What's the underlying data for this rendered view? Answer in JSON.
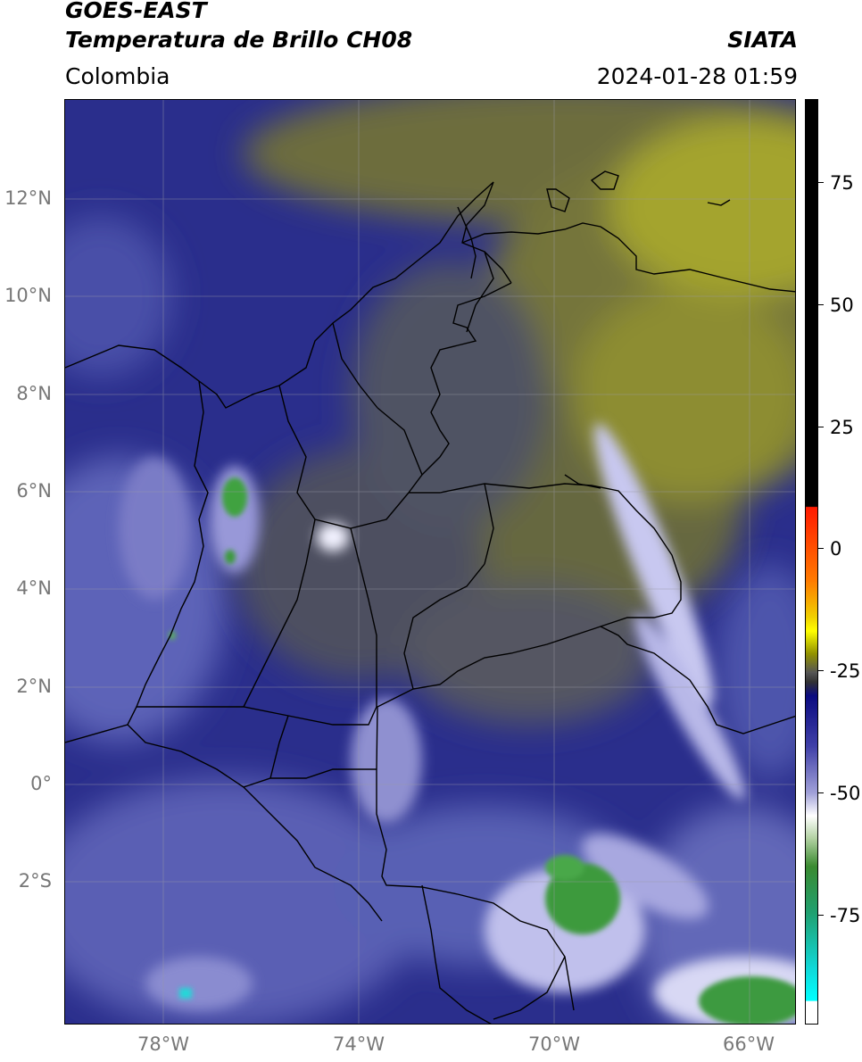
{
  "header": {
    "satellite": "GOES-EAST",
    "product": "Temperatura de Brillo CH08",
    "organization": "SIATA",
    "region": "Colombia",
    "datetime": "2024-01-28 01:59"
  },
  "map": {
    "lat_range": [
      -6.0,
      14.0
    ],
    "lon_range": [
      -80.0,
      -65.0
    ],
    "lat_ticks": [
      {
        "value": 12,
        "label": "12°N"
      },
      {
        "value": 10,
        "label": "10°N"
      },
      {
        "value": 8,
        "label": "8°N"
      },
      {
        "value": 6,
        "label": "6°N"
      },
      {
        "value": 4,
        "label": "4°N"
      },
      {
        "value": 2,
        "label": "2°N"
      },
      {
        "value": 0,
        "label": "0°"
      },
      {
        "value": -2,
        "label": "2°S"
      }
    ],
    "lon_ticks": [
      {
        "value": -78,
        "label": "78°W"
      },
      {
        "value": -74,
        "label": "74°W"
      },
      {
        "value": -70,
        "label": "70°W"
      },
      {
        "value": -66,
        "label": "66°W"
      }
    ],
    "grid": true,
    "colors": {
      "background_blue": "#2b2f8f",
      "dry_olive": "#8a8a2a",
      "dry_yellow": "#b8b824",
      "cloud_white": "#e8e8ff",
      "deep_convection_green": "#3a9a3a",
      "borders": "#000000"
    }
  },
  "colorbar": {
    "min": -95,
    "max": 90,
    "ticks": [
      {
        "value": 75,
        "label": "75"
      },
      {
        "value": 50,
        "label": "50"
      },
      {
        "value": 25,
        "label": "25"
      },
      {
        "value": 0,
        "label": "0"
      },
      {
        "value": -25,
        "label": "-25"
      },
      {
        "value": -50,
        "label": "-50"
      },
      {
        "value": -75,
        "label": "-75"
      }
    ]
  }
}
